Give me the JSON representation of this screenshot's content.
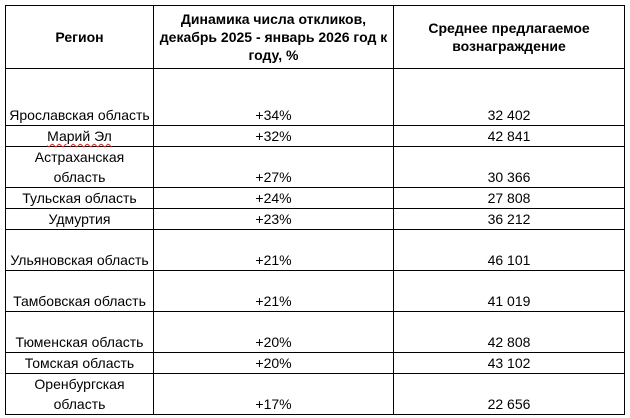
{
  "table": {
    "headers": {
      "region": "Регион",
      "growth": "Динамика числа откликов, декабрь 2025 - январь 2026 год к году, %",
      "salary": "Среднее предлагаемое вознаграждение"
    },
    "rows": [
      {
        "region": "Ярославская область",
        "growth": "+34%",
        "salary": "32 402"
      },
      {
        "region": "Марий Эл",
        "growth": "+32%",
        "salary": "42 841"
      },
      {
        "region": "Астраханская область",
        "growth": "+27%",
        "salary": "30 366"
      },
      {
        "region": "Тульская область",
        "growth": "+24%",
        "salary": "27 808"
      },
      {
        "region": "Удмуртия",
        "growth": "+23%",
        "salary": "36 212"
      },
      {
        "region": "Ульяновская область",
        "growth": "+21%",
        "salary": "46 101"
      },
      {
        "region": "Тамбовская область",
        "growth": "+21%",
        "salary": "41 019"
      },
      {
        "region": "Тюменская область",
        "growth": "+20%",
        "salary": "42 808"
      },
      {
        "region": "Томская область",
        "growth": "+20%",
        "salary": "43 102"
      },
      {
        "region": "Оренбургская область",
        "growth": "+17%",
        "salary": "22 656"
      }
    ]
  }
}
